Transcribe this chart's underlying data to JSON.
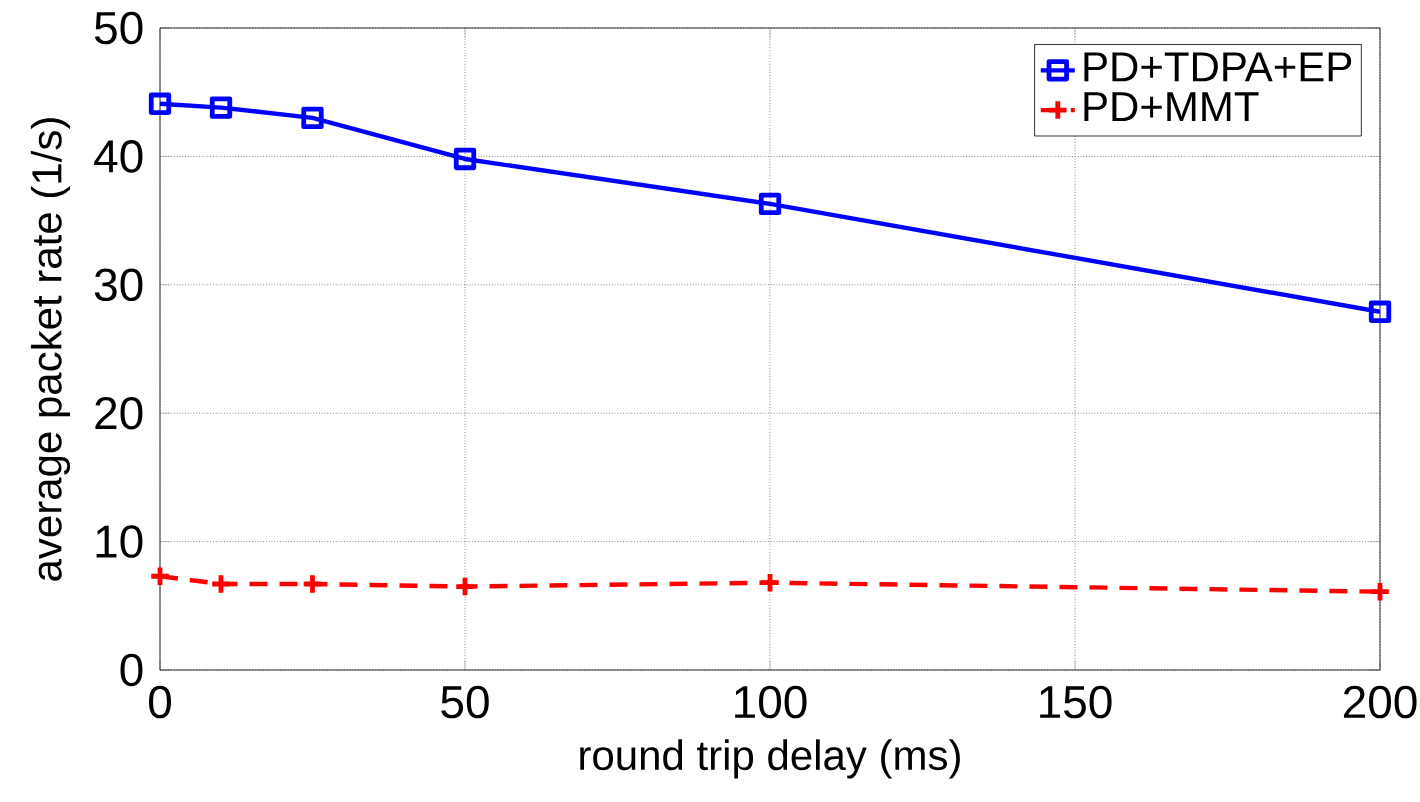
{
  "chart_data": {
    "type": "line",
    "xlabel": "round trip delay (ms)",
    "ylabel": "average packet rate (1/s)",
    "xlim": [
      0,
      200
    ],
    "ylim": [
      0,
      50
    ],
    "xticks": [
      0,
      50,
      100,
      150,
      200
    ],
    "yticks": [
      0,
      10,
      20,
      30,
      40,
      50
    ],
    "grid": true,
    "legend": "top right",
    "series": [
      {
        "name": "PD+TDPA+EP",
        "color": "#0000ff",
        "marker": "square",
        "line_style": "solid",
        "x": [
          0,
          10,
          25,
          50,
          100,
          200
        ],
        "values": [
          44.1,
          43.8,
          43.0,
          39.8,
          36.3,
          27.9
        ]
      },
      {
        "name": "PD+MMT",
        "color": "#ff0000",
        "marker": "cross",
        "line_style": "dashed",
        "x": [
          0,
          10,
          25,
          50,
          100,
          200
        ],
        "values": [
          7.3,
          6.7,
          6.7,
          6.5,
          6.8,
          6.1
        ]
      }
    ]
  }
}
